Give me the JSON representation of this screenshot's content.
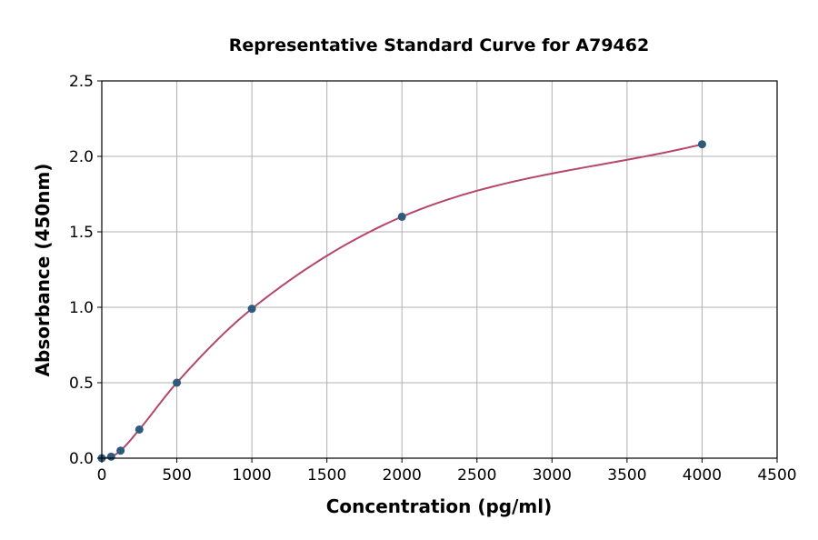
{
  "chart_data": {
    "type": "scatter",
    "title": "Representative Standard Curve for A79462",
    "xlabel": "Concentration (pg/ml)",
    "ylabel": "Absorbance (450nm)",
    "xlim": [
      0,
      4500
    ],
    "ylim": [
      0,
      2.5
    ],
    "xticks": [
      "0",
      "500",
      "1000",
      "1500",
      "2000",
      "2500",
      "3000",
      "3500",
      "4000",
      "4500"
    ],
    "yticks": [
      "0.0",
      "0.5",
      "1.0",
      "1.5",
      "2.0",
      "2.5"
    ],
    "grid": true,
    "fit_curve": true,
    "x": [
      0,
      62.5,
      125,
      250,
      500,
      1000,
      2000,
      4000
    ],
    "y": [
      0.0,
      0.01,
      0.05,
      0.19,
      0.5,
      0.99,
      1.6,
      2.08
    ],
    "colors": {
      "points": "#2e5a7e",
      "curve": "#b5476b",
      "grid": "#b0b0b0"
    }
  }
}
